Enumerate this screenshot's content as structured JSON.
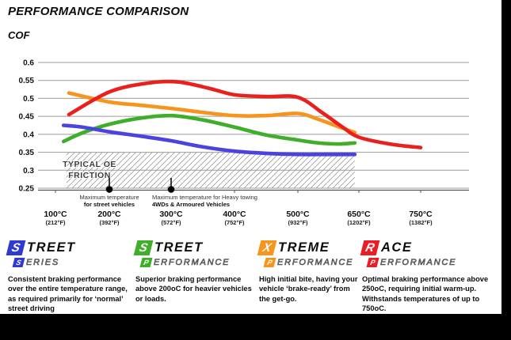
{
  "header": {
    "title": "PERFORMANCE COMPARISON",
    "axis_label": "COF"
  },
  "chart_data": {
    "type": "line",
    "title": "PERFORMANCE COMPARISON",
    "ylabel": "COF",
    "ylim": [
      0.25,
      0.6
    ],
    "grid": true,
    "legend_position": "bottom",
    "y_ticks": [
      0.6,
      0.55,
      0.5,
      0.45,
      0.4,
      0.35,
      0.3,
      0.25
    ],
    "x_ticks": [
      {
        "temp": 100,
        "celsius": "100°C",
        "fahrenheit": "(212°F)"
      },
      {
        "temp": 200,
        "celsius": "200°C",
        "fahrenheit": "(392°F)"
      },
      {
        "temp": 300,
        "celsius": "300°C",
        "fahrenheit": "(572°F)"
      },
      {
        "temp": 400,
        "celsius": "400°C",
        "fahrenheit": "(752°F)"
      },
      {
        "temp": 500,
        "celsius": "500°C",
        "fahrenheit": "(932°F)"
      },
      {
        "temp": 650,
        "celsius": "650°C",
        "fahrenheit": "(1202°F)"
      },
      {
        "temp": 750,
        "celsius": "750°C",
        "fahrenheit": "(1382°F)"
      }
    ],
    "oe_band": {
      "label_line1": "TYPICAL OE",
      "label_line2": "FRICTION",
      "cof_min": 0.25,
      "cof_max": 0.35,
      "temp_min": 120,
      "temp_max": 640
    },
    "annotations": [
      {
        "temp": 200,
        "line1": "Maximum temperature",
        "line2": "for street vehicles",
        "text_align": "center",
        "text_offset": 0
      },
      {
        "temp": 300,
        "line1": "Maximum temperature for Heavy towing",
        "line2": "4WDs & Armoured Vehicles",
        "text_align": "start",
        "text_offset": -24
      }
    ],
    "series": [
      {
        "name": "Street Series",
        "color": "#4a43e0",
        "points": [
          [
            115,
            0.425
          ],
          [
            150,
            0.42
          ],
          [
            200,
            0.407
          ],
          [
            250,
            0.395
          ],
          [
            300,
            0.382
          ],
          [
            350,
            0.365
          ],
          [
            400,
            0.353
          ],
          [
            450,
            0.347
          ],
          [
            500,
            0.344
          ],
          [
            570,
            0.344
          ],
          [
            640,
            0.344
          ]
        ]
      },
      {
        "name": "Street Performance",
        "color": "#3fae2b",
        "points": [
          [
            115,
            0.38
          ],
          [
            150,
            0.404
          ],
          [
            200,
            0.428
          ],
          [
            250,
            0.445
          ],
          [
            300,
            0.452
          ],
          [
            350,
            0.44
          ],
          [
            400,
            0.42
          ],
          [
            450,
            0.398
          ],
          [
            500,
            0.384
          ],
          [
            550,
            0.376
          ],
          [
            600,
            0.373
          ],
          [
            640,
            0.376
          ]
        ]
      },
      {
        "name": "Xtreme Performance",
        "color": "#f7941d",
        "points": [
          [
            125,
            0.515
          ],
          [
            200,
            0.49
          ],
          [
            250,
            0.481
          ],
          [
            300,
            0.472
          ],
          [
            350,
            0.461
          ],
          [
            400,
            0.452
          ],
          [
            450,
            0.452
          ],
          [
            500,
            0.458
          ],
          [
            550,
            0.442
          ],
          [
            600,
            0.421
          ],
          [
            640,
            0.405
          ]
        ]
      },
      {
        "name": "Race Performance",
        "color": "#e8201e",
        "points": [
          [
            125,
            0.455
          ],
          [
            200,
            0.518
          ],
          [
            260,
            0.542
          ],
          [
            310,
            0.546
          ],
          [
            360,
            0.528
          ],
          [
            400,
            0.51
          ],
          [
            450,
            0.505
          ],
          [
            500,
            0.503
          ],
          [
            560,
            0.46
          ],
          [
            610,
            0.42
          ],
          [
            650,
            0.392
          ],
          [
            700,
            0.373
          ],
          [
            750,
            0.363
          ]
        ]
      }
    ]
  },
  "legend": {
    "items": [
      {
        "name": "Street Series",
        "color": "#2e3ad1",
        "word1_initial": "S",
        "word1_rest": "TREET",
        "word2_initial": "S",
        "word2_rest": "ERIES",
        "description": "Consistent braking performance over the entire temperature range, as required primarily for ‘normal’ street driving"
      },
      {
        "name": "Street Performance",
        "color": "#3fae2b",
        "word1_initial": "S",
        "word1_rest": "TREET",
        "word2_initial": "P",
        "word2_rest": "ERFORMANCE",
        "description": "Superior braking performance above 200oC for heavier vehicles or loads."
      },
      {
        "name": "Xtreme Performance",
        "color": "#f7941d",
        "word1_initial": "X",
        "word1_rest": "TREME",
        "word2_initial": "P",
        "word2_rest": "ERFORMANCE",
        "description": "High initial bite, having your vehicle ‘brake-ready’ from the get-go."
      },
      {
        "name": "Race Performance",
        "color": "#ed1c24",
        "word1_initial": "R",
        "word1_rest": "ACE",
        "word2_initial": "P",
        "word2_rest": "ERFORMANCE",
        "description": "Optimal braking performance above 250oC, requiring initial warm-up. Withstands temperatures of up to 750oC."
      }
    ]
  }
}
